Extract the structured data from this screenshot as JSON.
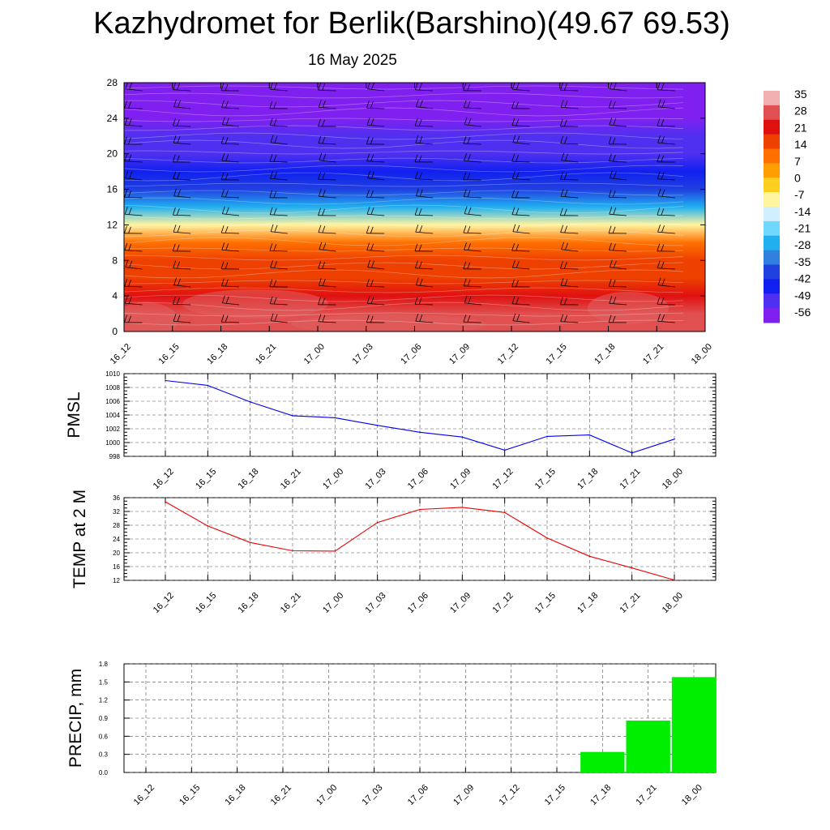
{
  "header": {
    "title": "Kazhydromet for Berlik(Barshino)(49.67 69.53)",
    "date": "16 May 2025"
  },
  "time_labels": [
    "16_12",
    "16_15",
    "16_18",
    "16_21",
    "17_00",
    "17_03",
    "17_06",
    "17_09",
    "17_12",
    "17_15",
    "17_18",
    "17_21",
    "18_00"
  ],
  "colors": {
    "pmsl_line": "#0000ee",
    "temp_line": "#ee0000",
    "precip_bar": "#00ee00"
  },
  "chart_data": [
    {
      "type": "heatmap",
      "title": "",
      "xlabel": "",
      "ylabel": "",
      "ylim": [
        0,
        28
      ],
      "yticks": [
        0,
        4,
        8,
        12,
        16,
        20,
        24,
        28
      ],
      "x": [
        "16_12",
        "16_15",
        "16_18",
        "16_21",
        "17_00",
        "17_03",
        "17_06",
        "17_09",
        "17_12",
        "17_15",
        "17_18",
        "17_21",
        "18_00"
      ],
      "colorbar": {
        "ticks": [
          35,
          28,
          21,
          14,
          7,
          0,
          -7,
          -14,
          -21,
          -28,
          -35,
          -42,
          -49,
          -56
        ],
        "colors_top_to_bottom": [
          "#f0b0b0",
          "#e05050",
          "#e01010",
          "#ee4000",
          "#ff7000",
          "#ff9e00",
          "#ffcf20",
          "#fff4a0",
          "#d0f0ff",
          "#70d8ff",
          "#20b0f0",
          "#3080e0",
          "#2040e0",
          "#1020f0",
          "#5030f0",
          "#8020f0"
        ]
      },
      "bands": [
        {
          "level": 0,
          "value": 30
        },
        {
          "level": 2,
          "value": 28
        },
        {
          "level": 4,
          "value": 25
        },
        {
          "level": 6,
          "value": 20
        },
        {
          "level": 8,
          "value": 15
        },
        {
          "level": 10,
          "value": 8
        },
        {
          "level": 12,
          "value": -10
        },
        {
          "level": 14,
          "value": -25
        },
        {
          "level": 16,
          "value": -35
        },
        {
          "level": 18,
          "value": -45
        },
        {
          "level": 20,
          "value": -52
        },
        {
          "level": 22,
          "value": -48
        },
        {
          "level": 24,
          "value": -55
        },
        {
          "level": 28,
          "value": -58
        }
      ],
      "wind_barbs": "present"
    },
    {
      "type": "line",
      "title": "",
      "ylabel": "PMSL",
      "x": [
        "16_12",
        "16_15",
        "16_18",
        "16_21",
        "17_00",
        "17_03",
        "17_06",
        "17_09",
        "17_12",
        "17_15",
        "17_18",
        "17_21",
        "18_00"
      ],
      "values": [
        1009.0,
        1008.3,
        1005.9,
        1003.9,
        1003.6,
        1002.5,
        1001.5,
        1000.8,
        998.9,
        1000.9,
        1001.1,
        998.5,
        1000.5
      ],
      "ylim": [
        998,
        1010
      ],
      "yticks": [
        998,
        1000,
        1002,
        1004,
        1006,
        1008,
        1010
      ],
      "grid": true
    },
    {
      "type": "line",
      "title": "",
      "ylabel": "TEMP at 2 M",
      "x": [
        "16_12",
        "16_15",
        "16_18",
        "16_21",
        "17_00",
        "17_03",
        "17_06",
        "17_09",
        "17_12",
        "17_15",
        "17_18",
        "17_21",
        "18_00"
      ],
      "values": [
        34.8,
        27.8,
        23.0,
        20.6,
        20.5,
        28.8,
        32.6,
        33.2,
        31.7,
        24.3,
        19.0,
        15.6,
        12.1
      ],
      "ylim": [
        12,
        36
      ],
      "yticks": [
        12,
        16,
        20,
        24,
        28,
        32,
        36
      ],
      "grid": true
    },
    {
      "type": "bar",
      "title": "",
      "ylabel": "PRECIP, mm",
      "categories": [
        "16_12",
        "16_15",
        "16_18",
        "16_21",
        "17_00",
        "17_03",
        "17_06",
        "17_09",
        "17_12",
        "17_15",
        "17_18",
        "17_21",
        "18_00"
      ],
      "values": [
        0,
        0,
        0,
        0,
        0,
        0,
        0,
        0,
        0,
        0,
        0.34,
        0.86,
        1.58
      ],
      "ylim": [
        0,
        1.8
      ],
      "yticks": [
        0.0,
        0.3,
        0.6,
        0.9,
        1.2,
        1.5,
        1.8
      ],
      "ytick_labels": [
        "0.0",
        "0.3",
        "0.6",
        "0.9",
        "1.2",
        "1.5",
        "1.8"
      ],
      "grid": true
    }
  ]
}
